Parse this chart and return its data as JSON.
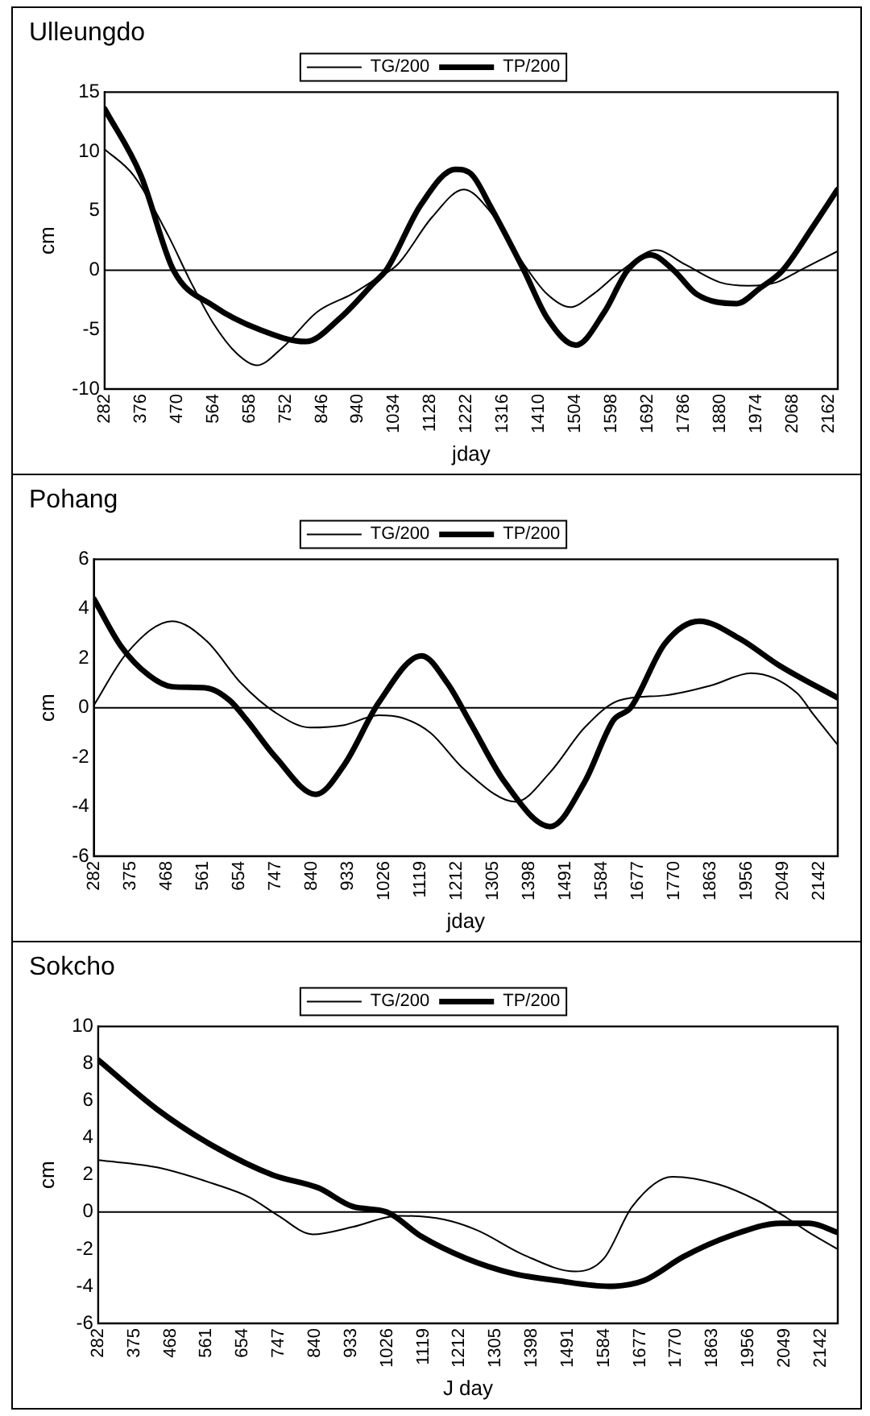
{
  "chart_data": [
    {
      "type": "line",
      "title": "Ulleungdo",
      "xlabel": "jday",
      "ylabel": "cm",
      "xlim": [
        282,
        2186
      ],
      "xticks": [
        282,
        376,
        470,
        564,
        658,
        752,
        846,
        940,
        1034,
        1128,
        1222,
        1316,
        1410,
        1504,
        1598,
        1692,
        1786,
        1880,
        1974,
        2068,
        2162
      ],
      "ylim": [
        -10,
        15
      ],
      "yticks": [
        -10,
        -5,
        0,
        5,
        10,
        15
      ],
      "legend": "top",
      "ref_lines": [
        {
          "axis": "y",
          "value": 0
        }
      ],
      "marker": "none",
      "line_style": "solid",
      "series": [
        {
          "name": "TG/200",
          "color": "#000000",
          "x": [
            282,
            357,
            446,
            506,
            565,
            625,
            677,
            744,
            834,
            924,
            983,
            1043,
            1133,
            1215,
            1282,
            1371,
            1431,
            1491,
            1551,
            1625,
            1715,
            1789,
            1879,
            1954,
            2028,
            2088,
            2185
          ],
          "values": [
            10.2,
            8,
            3,
            -1,
            -4.5,
            -7,
            -8,
            -6.5,
            -3.5,
            -2,
            -0.8,
            0.5,
            4.5,
            6.8,
            5,
            0.5,
            -2,
            -3.1,
            -2,
            0,
            1.7,
            0.5,
            -1,
            -1.3,
            -1,
            0,
            1.6
          ]
        },
        {
          "name": "TP/200",
          "color": "#000000",
          "x": [
            282,
            376,
            461,
            565,
            685,
            804,
            894,
            983,
            1013,
            1103,
            1193,
            1237,
            1282,
            1371,
            1431,
            1506,
            1580,
            1640,
            1700,
            1760,
            1819,
            1924,
            1984,
            2043,
            2118,
            2185
          ],
          "values": [
            13.6,
            8,
            0,
            -3,
            -5,
            -6,
            -4,
            -1,
            0,
            5.5,
            8.5,
            8,
            5.5,
            0,
            -4,
            -6.3,
            -3.5,
            0,
            1.3,
            0,
            -2,
            -2.8,
            -1.5,
            0,
            3.5,
            6.8
          ]
        }
      ]
    },
    {
      "type": "line",
      "title": "Pohang",
      "xlabel": "jday",
      "ylabel": "cm",
      "xlim": [
        282,
        2189
      ],
      "xticks": [
        282,
        375,
        468,
        561,
        654,
        747,
        840,
        933,
        1026,
        1119,
        1212,
        1305,
        1398,
        1491,
        1584,
        1677,
        1770,
        1863,
        1956,
        2049,
        2142
      ],
      "ylim": [
        -6,
        6
      ],
      "yticks": [
        -6,
        -4,
        -2,
        0,
        2,
        4,
        6
      ],
      "legend": "top",
      "ref_lines": [
        {
          "axis": "y",
          "value": 0
        }
      ],
      "marker": "none",
      "line_style": "solid",
      "series": [
        {
          "name": "TG/200",
          "color": "#000000",
          "x": [
            282,
            366,
            483,
            571,
            659,
            748,
            836,
            924,
            1012,
            1071,
            1144,
            1232,
            1364,
            1452,
            1540,
            1629,
            1746,
            1864,
            1967,
            2084,
            2128,
            2189
          ],
          "values": [
            0.1,
            2.2,
            3.5,
            2.7,
            1,
            -0.2,
            -0.8,
            -0.7,
            -0.3,
            -0.4,
            -1,
            -2.5,
            -3.8,
            -2.6,
            -0.8,
            0.3,
            0.5,
            0.9,
            1.4,
            0.6,
            -0.3,
            -1.5
          ]
        },
        {
          "name": "TP/200",
          "color": "#000000",
          "x": [
            282,
            351,
            424,
            483,
            571,
            630,
            674,
            748,
            851,
            924,
            1012,
            1122,
            1188,
            1247,
            1335,
            1452,
            1540,
            1614,
            1658,
            1746,
            1834,
            1937,
            2040,
            2189
          ],
          "values": [
            4.4,
            2.5,
            1.3,
            0.85,
            0.8,
            0.3,
            -0.5,
            -2,
            -3.5,
            -2.3,
            0.2,
            2.1,
            1,
            -0.6,
            -3,
            -4.8,
            -3,
            -0.5,
            0,
            2.6,
            3.5,
            2.8,
            1.7,
            0.4
          ]
        }
      ]
    },
    {
      "type": "line",
      "title": "Sokcho",
      "xlabel": "J day",
      "ylabel": "cm",
      "xlim": [
        282,
        2186
      ],
      "xticks": [
        282,
        375,
        468,
        561,
        654,
        747,
        840,
        933,
        1026,
        1119,
        1212,
        1305,
        1398,
        1491,
        1584,
        1677,
        1770,
        1863,
        1956,
        2049,
        2142
      ],
      "ylim": [
        -6,
        10
      ],
      "yticks": [
        -6,
        -4,
        -2,
        0,
        2,
        4,
        6,
        8,
        10
      ],
      "legend": "top",
      "ref_lines": [
        {
          "axis": "y",
          "value": 0
        }
      ],
      "marker": "none",
      "line_style": "solid",
      "series": [
        {
          "name": "TG/200",
          "color": "#000000",
          "x": [
            282,
            436,
            583,
            671,
            746,
            834,
            937,
            1054,
            1172,
            1260,
            1377,
            1510,
            1584,
            1657,
            1760,
            1878,
            1981,
            2054,
            2112,
            2186
          ],
          "values": [
            2.8,
            2.4,
            1.5,
            0.8,
            -0.2,
            -1.2,
            -0.8,
            -0.2,
            -0.4,
            -1,
            -2.3,
            -3.2,
            -2.5,
            0.3,
            1.9,
            1.5,
            0.6,
            -0.3,
            -1.1,
            -2
          ]
        },
        {
          "name": "TP/200",
          "color": "#000000",
          "x": [
            282,
            436,
            583,
            731,
            849,
            937,
            1025,
            1113,
            1230,
            1348,
            1466,
            1598,
            1686,
            1789,
            1907,
            2039,
            2112,
            2186
          ],
          "values": [
            8.2,
            5.5,
            3.5,
            2,
            1.3,
            0.3,
            0,
            -1.3,
            -2.5,
            -3.3,
            -3.7,
            -4,
            -3.7,
            -2.4,
            -1.3,
            -0.6,
            -0.6,
            -1.1
          ]
        }
      ]
    }
  ]
}
